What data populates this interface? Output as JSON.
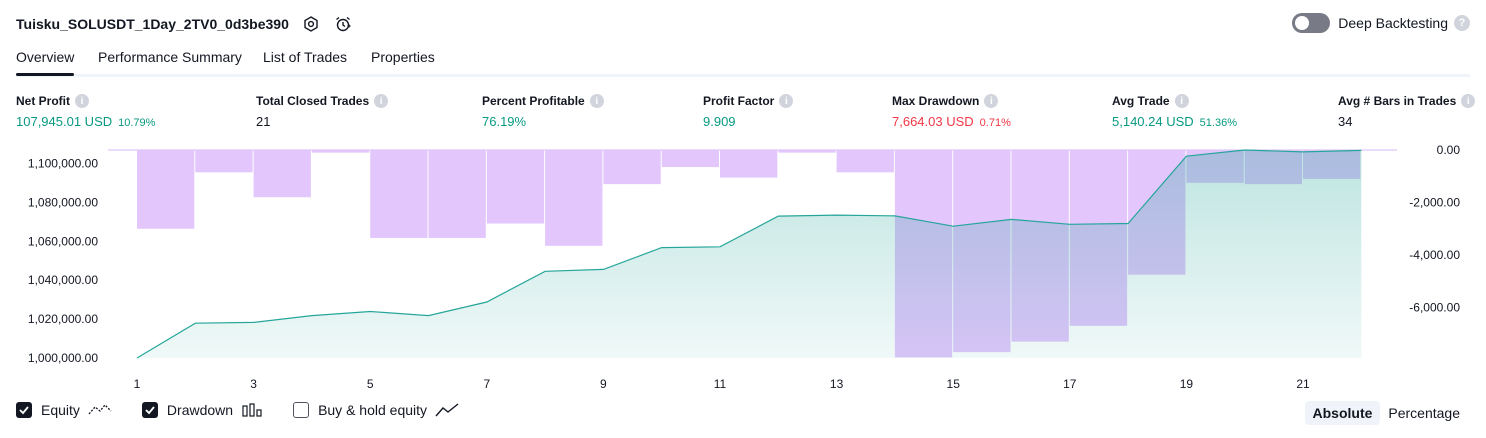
{
  "header": {
    "title": "Tuisku_SOLUSDT_1Day_2TV0_0d3be390",
    "icons": [
      "settings-icon",
      "alarm-clock-icon"
    ]
  },
  "deep_backtesting": {
    "label": "Deep Backtesting",
    "enabled": false,
    "help_icon": "question-icon"
  },
  "tabs": [
    {
      "label": "Overview",
      "active": true
    },
    {
      "label": "Performance Summary",
      "active": false
    },
    {
      "label": "List of Trades",
      "active": false
    },
    {
      "label": "Properties",
      "active": false
    }
  ],
  "metrics": [
    {
      "label": "Net Profit",
      "value": "107,945.01 USD",
      "sub": "10.79%",
      "color": "#089981"
    },
    {
      "label": "Total Closed Trades",
      "value": "21",
      "sub": "",
      "color": "#131722"
    },
    {
      "label": "Percent Profitable",
      "value": "76.19%",
      "sub": "",
      "color": "#089981"
    },
    {
      "label": "Profit Factor",
      "value": "9.909",
      "sub": "",
      "color": "#089981"
    },
    {
      "label": "Max Drawdown",
      "value": "7,664.03 USD",
      "sub": "0.71%",
      "color": "#f23645"
    },
    {
      "label": "Avg Trade",
      "value": "5,140.24 USD",
      "sub": "51.36%",
      "color": "#089981"
    },
    {
      "label": "Avg # Bars in Trades",
      "value": "34",
      "sub": "",
      "color": "#131722"
    }
  ],
  "chart_data": {
    "type": "area",
    "x": [
      1,
      2,
      3,
      4,
      5,
      6,
      7,
      8,
      9,
      10,
      11,
      12,
      13,
      14,
      15,
      16,
      17,
      18,
      19,
      20,
      21,
      22
    ],
    "x_tick_labels": [
      "1",
      "3",
      "5",
      "7",
      "9",
      "11",
      "13",
      "15",
      "17",
      "19",
      "21"
    ],
    "left_axis": {
      "ylim": [
        1000000,
        1107000
      ],
      "tick_labels": [
        "1,100,000.00",
        "1,080,000.00",
        "1,060,000.00",
        "1,040,000.00",
        "1,020,000.00",
        "1,000,000.00"
      ],
      "ticks": [
        1100000,
        1080000,
        1060000,
        1040000,
        1020000,
        1000000
      ]
    },
    "right_axis": {
      "ylim": [
        -8000,
        0
      ],
      "tick_labels": [
        "0.00",
        "-2,000.00",
        "-4,000.00",
        "-6,000.00"
      ],
      "ticks": [
        0,
        -2000,
        -4000,
        -6000
      ]
    },
    "series": [
      {
        "name": "Equity",
        "axis": "left",
        "color": "#26a69a",
        "values": [
          1000000,
          1017900,
          1018300,
          1021800,
          1023900,
          1021800,
          1028800,
          1044600,
          1045600,
          1056800,
          1057200,
          1073000,
          1073500,
          1073100,
          1067800,
          1071300,
          1068800,
          1069200,
          1103800,
          1107000,
          1106000,
          1106800
        ]
      },
      {
        "name": "Drawdown",
        "axis": "right",
        "color": "#e0c3fc",
        "values": [
          0,
          -3000,
          -850,
          -1800,
          -100,
          -3350,
          -3350,
          -2800,
          -3650,
          -1300,
          -650,
          -1050,
          -100,
          -850,
          -7900,
          -7700,
          -7300,
          -6700,
          -4750,
          -1250,
          -1300,
          -1100
        ]
      }
    ],
    "grid": false
  },
  "legend": {
    "items": [
      {
        "label": "Equity",
        "checked": true,
        "icon": "equity-line-icon"
      },
      {
        "label": "Drawdown",
        "checked": true,
        "icon": "drawdown-bars-icon"
      },
      {
        "label": "Buy & hold equity",
        "checked": false,
        "icon": "buy-hold-line-icon"
      }
    ],
    "modes": [
      {
        "label": "Absolute",
        "selected": true
      },
      {
        "label": "Percentage",
        "selected": false
      }
    ]
  }
}
